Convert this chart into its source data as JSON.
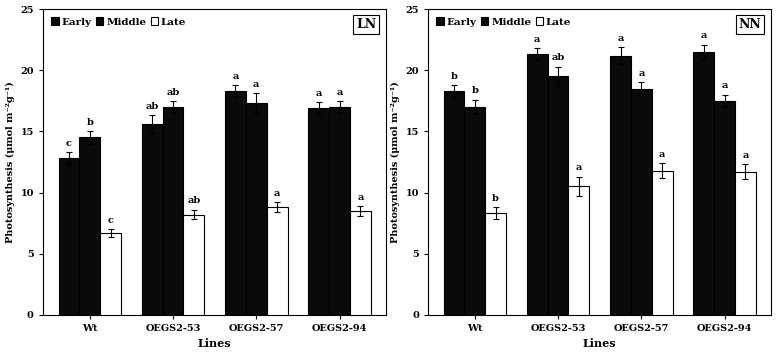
{
  "categories": [
    "Wt",
    "OEGS2-53",
    "OEGS2-57",
    "OEGS2-94"
  ],
  "LN": {
    "Early": {
      "values": [
        12.8,
        15.6,
        18.3,
        16.9
      ],
      "errors": [
        0.5,
        0.7,
        0.5,
        0.5
      ]
    },
    "Middle": {
      "values": [
        14.5,
        17.0,
        17.3,
        17.0
      ],
      "errors": [
        0.5,
        0.5,
        0.8,
        0.5
      ]
    },
    "Late": {
      "values": [
        6.7,
        8.2,
        8.8,
        8.5
      ],
      "errors": [
        0.3,
        0.4,
        0.4,
        0.4
      ]
    }
  },
  "NN": {
    "Early": {
      "values": [
        18.3,
        21.3,
        21.2,
        21.5
      ],
      "errors": [
        0.5,
        0.5,
        0.7,
        0.6
      ]
    },
    "Middle": {
      "values": [
        17.0,
        19.5,
        18.5,
        17.5
      ],
      "errors": [
        0.6,
        0.8,
        0.5,
        0.5
      ]
    },
    "Late": {
      "values": [
        8.3,
        10.5,
        11.8,
        11.7
      ],
      "errors": [
        0.5,
        0.8,
        0.6,
        0.6
      ]
    }
  },
  "LN_annots": {
    "Early": [
      "c",
      "ab",
      "a",
      "a"
    ],
    "Middle": [
      "b",
      "ab",
      "a",
      "a"
    ],
    "Late": [
      "c",
      "ab",
      "a",
      "a"
    ]
  },
  "NN_annots": {
    "Early": [
      "b",
      "a",
      "a",
      "a"
    ],
    "Middle": [
      "b",
      "ab",
      "a",
      "a"
    ],
    "Late": [
      "b",
      "a",
      "a",
      "a"
    ]
  },
  "bar_colors": {
    "Early": "#0a0a0a",
    "Middle": "#0a0a0a",
    "Late": "#ffffff"
  },
  "bar_edgecolor": "#000000",
  "ylabel": "Photosynthesis (μmol m⁻²g⁻¹)",
  "ylabel2": "Photosynthesis (μmol m⁻²g⁻¹)",
  "xlabel": "Lines",
  "ylim": [
    0,
    25
  ],
  "yticks": [
    0,
    5,
    10,
    15,
    20,
    25
  ],
  "panel_labels": [
    "LN",
    "NN"
  ],
  "legend_labels": [
    "Early",
    "Middle",
    "Late"
  ],
  "bar_width": 0.25,
  "annot_fontsize": 7,
  "tick_fontsize": 7,
  "label_fontsize": 8,
  "legend_fontsize": 7.5
}
